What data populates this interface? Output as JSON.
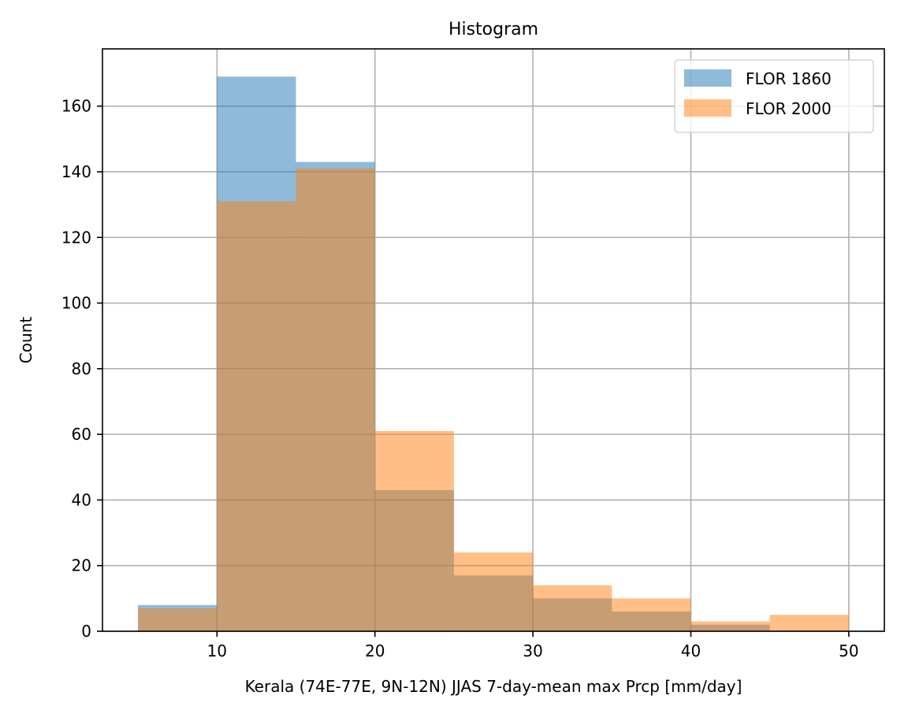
{
  "chart_data": {
    "type": "bar",
    "title": "Histogram",
    "xlabel": "Kerala (74E-77E, 9N-12N) JJAS 7-day-mean max Prcp [mm/day]",
    "ylabel": "Count",
    "xlim": [
      2.75,
      52.25
    ],
    "ylim": [
      0,
      177.45
    ],
    "grid": true,
    "legend_position": "top-right",
    "x_ticks": [
      10,
      20,
      30,
      40,
      50
    ],
    "y_ticks": [
      0,
      20,
      40,
      60,
      80,
      100,
      120,
      140,
      160
    ],
    "bin_edges": [
      5,
      10,
      15,
      20,
      25,
      30,
      35,
      40,
      45,
      50
    ],
    "series": [
      {
        "name": "FLOR 1860",
        "color": "#1f77b4",
        "alpha": 0.5,
        "values": [
          8,
          169,
          143,
          43,
          17,
          10,
          6,
          2,
          0
        ]
      },
      {
        "name": "FLOR 2000",
        "color": "#ff7f0e",
        "alpha": 0.5,
        "values": [
          7,
          131,
          141,
          61,
          24,
          14,
          10,
          3,
          5
        ]
      }
    ]
  }
}
